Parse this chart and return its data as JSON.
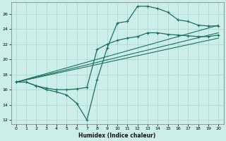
{
  "xlabel": "Humidex (Indice chaleur)",
  "bg_color": "#cceee8",
  "grid_color": "#aad4ce",
  "line_color": "#1a7060",
  "xlim": [
    -0.5,
    20.5
  ],
  "ylim": [
    11.5,
    27.5
  ],
  "xticks": [
    0,
    1,
    2,
    3,
    4,
    5,
    6,
    7,
    8,
    9,
    10,
    11,
    12,
    13,
    14,
    15,
    16,
    17,
    18,
    19,
    20
  ],
  "yticks": [
    12,
    14,
    16,
    18,
    20,
    22,
    24,
    26
  ],
  "lines": [
    {
      "x": [
        0,
        1,
        2,
        3,
        4,
        5,
        6,
        7,
        8,
        9,
        10,
        11,
        12,
        13,
        14,
        15,
        16,
        17,
        18,
        19,
        20
      ],
      "y": [
        17,
        17,
        16.5,
        16,
        15.7,
        15.3,
        14.2,
        12.0,
        17.3,
        21.5,
        24.8,
        25.0,
        27.0,
        27.0,
        26.7,
        26.2,
        25.2,
        25.0,
        24.5,
        24.4,
        24.4
      ],
      "has_marker": true
    },
    {
      "x": [
        0,
        1,
        2,
        3,
        4,
        5,
        6,
        7,
        8,
        9,
        10,
        11,
        12,
        13,
        14,
        15,
        16,
        17,
        18,
        19,
        20
      ],
      "y": [
        17,
        17,
        16.5,
        16.2,
        16.0,
        16.0,
        16.1,
        16.3,
        21.3,
        22.0,
        22.5,
        22.8,
        23.0,
        23.5,
        23.5,
        23.3,
        23.2,
        23.1,
        23.0,
        23.0,
        23.2
      ],
      "has_marker": true
    },
    {
      "x": [
        0,
        20
      ],
      "y": [
        17.0,
        24.5
      ],
      "has_marker": false
    },
    {
      "x": [
        0,
        20
      ],
      "y": [
        17.0,
        23.5
      ],
      "has_marker": false
    },
    {
      "x": [
        0,
        20
      ],
      "y": [
        17.0,
        22.8
      ],
      "has_marker": false
    }
  ]
}
